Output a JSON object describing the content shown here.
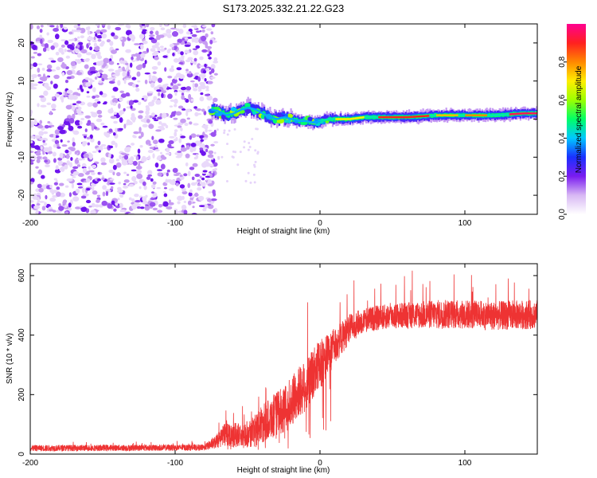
{
  "title": "S173.2025.332.21.22.G23",
  "chart_data": [
    {
      "type": "heatmap",
      "xlabel": "Height of straight line (km)",
      "ylabel": "Frequency (Hz)",
      "xlim": [
        -200,
        150
      ],
      "ylim": [
        -25,
        25
      ],
      "xticks": [
        -200,
        -100,
        0,
        100
      ],
      "yticks": [
        -20,
        -10,
        0,
        10,
        20
      ],
      "noise_region_x": [
        -200,
        -75
      ],
      "colorbar": {
        "label": "Normalized spectral amplitude",
        "range": [
          0,
          1
        ],
        "ticks": [
          "0.0",
          "0.2",
          "0.4",
          "0.6",
          "0.8"
        ],
        "tick_values": [
          0,
          0.2,
          0.4,
          0.6,
          0.8
        ],
        "stops": [
          "#ffffff",
          "#d8b8f4",
          "#7a1cf0",
          "#1a30ff",
          "#00c8ff",
          "#00ff66",
          "#9cff00",
          "#ffee00",
          "#ff8800",
          "#ff2020",
          "#ff0090"
        ]
      },
      "track": [
        {
          "x": -75,
          "f": 2.5
        },
        {
          "x": -70,
          "f": 2.0
        },
        {
          "x": -65,
          "f": 1.0
        },
        {
          "x": -60,
          "f": 1.5
        },
        {
          "x": -55,
          "f": 2.5
        },
        {
          "x": -50,
          "f": 3.0
        },
        {
          "x": -45,
          "f": 2.5
        },
        {
          "x": -40,
          "f": 1.5
        },
        {
          "x": -35,
          "f": 0.5
        },
        {
          "x": -30,
          "f": 0.0
        },
        {
          "x": -25,
          "f": 0.5
        },
        {
          "x": -20,
          "f": 0.0
        },
        {
          "x": -15,
          "f": -0.5
        },
        {
          "x": -10,
          "f": -0.5
        },
        {
          "x": -5,
          "f": -1.0
        },
        {
          "x": 0,
          "f": -0.5
        },
        {
          "x": 5,
          "f": 0.0
        },
        {
          "x": 10,
          "f": 0.0
        },
        {
          "x": 20,
          "f": 0.0
        },
        {
          "x": 30,
          "f": 0.5
        },
        {
          "x": 40,
          "f": 0.5
        },
        {
          "x": 60,
          "f": 0.5
        },
        {
          "x": 80,
          "f": 1.0
        },
        {
          "x": 90,
          "f": 1.0
        },
        {
          "x": 100,
          "f": 1.0
        },
        {
          "x": 120,
          "f": 1.0
        },
        {
          "x": 140,
          "f": 1.5
        },
        {
          "x": 150,
          "f": 1.5
        }
      ],
      "peak_segments": [
        {
          "x_start": 10,
          "x_end": 30,
          "amplitude": 0.7
        },
        {
          "x_start": 40,
          "x_end": 75,
          "amplitude": 0.9
        },
        {
          "x_start": 80,
          "x_end": 95,
          "amplitude": 0.75
        },
        {
          "x_start": 100,
          "x_end": 115,
          "amplitude": 0.8
        },
        {
          "x_start": 130,
          "x_end": 150,
          "amplitude": 0.95
        }
      ]
    },
    {
      "type": "line",
      "xlabel": "Height of straight line (km)",
      "ylabel": "SNR (10 * v/v)",
      "xlim": [
        -200,
        150
      ],
      "ylim": [
        0,
        640
      ],
      "xticks": [
        -200,
        -100,
        0,
        100
      ],
      "yticks": [
        0,
        200,
        400,
        600
      ],
      "color": "#ee3333",
      "series": [
        {
          "name": "SNR",
          "envelope": [
            {
              "x": -200,
              "mean": 20,
              "spread": 15,
              "spike_max": 40
            },
            {
              "x": -80,
              "mean": 22,
              "spread": 15,
              "spike_max": 45
            },
            {
              "x": -72,
              "mean": 40,
              "spread": 30,
              "spike_max": 100
            },
            {
              "x": -65,
              "mean": 70,
              "spread": 60,
              "spike_max": 160
            },
            {
              "x": -55,
              "mean": 60,
              "spread": 60,
              "spike_max": 150
            },
            {
              "x": -45,
              "mean": 80,
              "spread": 80,
              "spike_max": 230
            },
            {
              "x": -35,
              "mean": 120,
              "spread": 100,
              "spike_max": 330
            },
            {
              "x": -25,
              "mean": 150,
              "spread": 110,
              "spike_max": 350
            },
            {
              "x": -12,
              "mean": 220,
              "spread": 130,
              "spike_max": 545
            },
            {
              "x": 0,
              "mean": 300,
              "spread": 120,
              "spike_max": 480
            },
            {
              "x": 10,
              "mean": 360,
              "spread": 90,
              "spike_max": 560
            },
            {
              "x": 20,
              "mean": 420,
              "spread": 70,
              "spike_max": 600
            },
            {
              "x": 30,
              "mean": 450,
              "spread": 60,
              "spike_max": 620
            },
            {
              "x": 50,
              "mean": 465,
              "spread": 60,
              "spike_max": 625
            },
            {
              "x": 80,
              "mean": 470,
              "spread": 70,
              "spike_max": 630
            },
            {
              "x": 100,
              "mean": 470,
              "spread": 70,
              "spike_max": 635
            },
            {
              "x": 120,
              "mean": 465,
              "spread": 70,
              "spike_max": 635
            },
            {
              "x": 150,
              "mean": 470,
              "spread": 70,
              "spike_max": 630
            }
          ]
        }
      ]
    }
  ]
}
